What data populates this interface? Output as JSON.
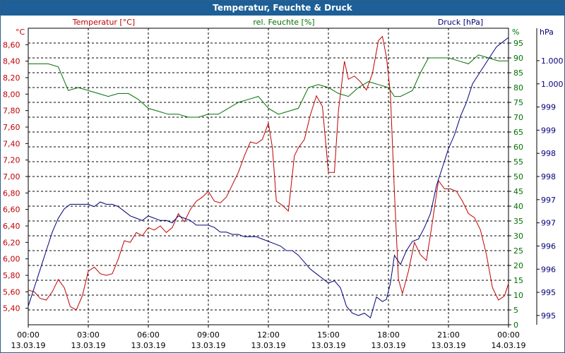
{
  "window": {
    "title": "Temperatur, Feuchte & Druck"
  },
  "chart_data": {
    "type": "line",
    "title": "Temperatur, Feuchte & Druck",
    "x_ticks": [
      {
        "time": "00:00",
        "date": "13.03.19"
      },
      {
        "time": "03:00",
        "date": "13.03.19"
      },
      {
        "time": "06:00",
        "date": "13.03.19"
      },
      {
        "time": "09:00",
        "date": "13.03.19"
      },
      {
        "time": "12:00",
        "date": "13.03.19"
      },
      {
        "time": "15:00",
        "date": "13.03.19"
      },
      {
        "time": "18:00",
        "date": "13.03.19"
      },
      {
        "time": "21:00",
        "date": "13.03.19"
      },
      {
        "time": "00:00",
        "date": "14.03.19"
      }
    ],
    "x_unit": "hours since 13.03.19 00:00",
    "xlim": [
      0,
      24
    ],
    "axes": {
      "temperature": {
        "label": "Temperatur [°C]",
        "unit": "°C",
        "color": "#c00000",
        "ylim": [
          5.2,
          8.8
        ],
        "ticks": [
          "5,40",
          "5,60",
          "5,80",
          "6,00",
          "6,20",
          "6,40",
          "6,60",
          "6,80",
          "7,00",
          "7,20",
          "7,40",
          "7,60",
          "7,80",
          "8,00",
          "8,20",
          "8,40",
          "8,60"
        ]
      },
      "humidity": {
        "label": "rel. Feuchte [%]",
        "unit": "%",
        "color": "#007000",
        "ylim": [
          0,
          100
        ],
        "ticks": [
          "0",
          "5",
          "10",
          "15",
          "20",
          "25",
          "30",
          "35",
          "40",
          "45",
          "50",
          "55",
          "60",
          "65",
          "70",
          "75",
          "80",
          "85",
          "90",
          "95"
        ]
      },
      "pressure": {
        "label": "Druck [hPa]",
        "unit": "hPa",
        "color": "#00007a",
        "ylim": [
          994.8,
          1001.2
        ],
        "tick_labels": [
          "995",
          "995",
          "996",
          "996",
          "997",
          "997",
          "998",
          "998",
          "999",
          "999",
          "1.000",
          "1.000"
        ]
      }
    },
    "series": [
      {
        "name": "Temperatur",
        "axis": "temperature",
        "color": "#c00000",
        "x": [
          0,
          0.3,
          0.6,
          0.9,
          1.2,
          1.5,
          1.8,
          2.1,
          2.4,
          2.7,
          3.0,
          3.3,
          3.6,
          3.9,
          4.2,
          4.5,
          4.8,
          5.1,
          5.4,
          5.7,
          6.0,
          6.3,
          6.6,
          6.9,
          7.2,
          7.5,
          7.8,
          8.1,
          8.4,
          8.7,
          9.0,
          9.3,
          9.6,
          9.9,
          10.2,
          10.5,
          10.8,
          11.1,
          11.4,
          11.7,
          12.0,
          12.2,
          12.4,
          12.7,
          13.0,
          13.3,
          13.5,
          13.8,
          14.1,
          14.4,
          14.7,
          15.0,
          15.3,
          15.5,
          15.8,
          16.0,
          16.3,
          16.6,
          16.9,
          17.2,
          17.5,
          17.7,
          17.9,
          18.1,
          18.3,
          18.5,
          18.7,
          19.0,
          19.3,
          19.6,
          19.9,
          20.2,
          20.5,
          20.8,
          21.1,
          21.4,
          21.7,
          22.0,
          22.3,
          22.6,
          22.9,
          23.2,
          23.5,
          23.8,
          24.0
        ],
        "y": [
          5.62,
          5.6,
          5.52,
          5.5,
          5.6,
          5.75,
          5.65,
          5.42,
          5.38,
          5.55,
          5.85,
          5.9,
          5.82,
          5.8,
          5.82,
          6.0,
          6.22,
          6.2,
          6.32,
          6.28,
          6.38,
          6.35,
          6.4,
          6.32,
          6.38,
          6.55,
          6.45,
          6.6,
          6.7,
          6.75,
          6.82,
          6.7,
          6.68,
          6.75,
          6.9,
          7.05,
          7.25,
          7.42,
          7.4,
          7.45,
          7.65,
          7.35,
          6.7,
          6.65,
          6.58,
          7.25,
          7.35,
          7.45,
          7.75,
          7.98,
          7.85,
          7.05,
          7.05,
          7.8,
          8.4,
          8.18,
          8.22,
          8.15,
          8.05,
          8.25,
          8.65,
          8.7,
          8.45,
          8.0,
          6.8,
          5.75,
          5.58,
          5.85,
          6.2,
          6.05,
          5.98,
          6.45,
          6.95,
          6.85,
          6.85,
          6.82,
          6.7,
          6.55,
          6.5,
          6.35,
          6.05,
          5.65,
          5.5,
          5.55,
          5.7
        ]
      },
      {
        "name": "rel. Feuchte",
        "axis": "humidity",
        "color": "#007000",
        "x": [
          0,
          0.5,
          1.0,
          1.5,
          2.0,
          2.5,
          3.0,
          3.5,
          4.0,
          4.5,
          5.0,
          5.5,
          6.0,
          6.5,
          7.0,
          7.5,
          8.0,
          8.5,
          9.0,
          9.5,
          10.0,
          10.5,
          11.0,
          11.5,
          12.0,
          12.5,
          13.0,
          13.5,
          14.0,
          14.5,
          15.0,
          15.5,
          16.0,
          16.5,
          17.0,
          17.5,
          18.0,
          18.3,
          18.6,
          18.9,
          19.2,
          19.6,
          20.0,
          20.5,
          21.0,
          21.5,
          22.0,
          22.5,
          23.0,
          23.5,
          24.0
        ],
        "y": [
          88,
          88,
          88,
          87,
          79,
          80,
          79,
          78,
          77,
          78,
          78,
          76,
          73,
          72,
          71,
          71,
          70,
          70,
          71,
          71,
          73,
          75,
          76,
          77,
          73,
          71,
          72,
          73,
          80,
          81,
          80,
          78,
          77,
          80,
          82,
          81,
          80,
          77,
          77,
          78,
          79,
          85,
          90,
          90,
          90,
          89,
          88,
          91,
          90,
          89,
          89
        ]
      },
      {
        "name": "Druck",
        "axis": "pressure",
        "color": "#00007a",
        "x": [
          0,
          0.3,
          0.6,
          0.9,
          1.2,
          1.5,
          1.8,
          2.1,
          2.4,
          2.7,
          3.0,
          3.3,
          3.6,
          3.9,
          4.2,
          4.5,
          4.8,
          5.1,
          5.4,
          5.7,
          6.0,
          6.3,
          6.6,
          6.9,
          7.2,
          7.5,
          7.8,
          8.1,
          8.4,
          8.7,
          9.0,
          9.3,
          9.6,
          9.9,
          10.2,
          10.5,
          10.8,
          11.1,
          11.4,
          11.7,
          12.0,
          12.3,
          12.6,
          12.9,
          13.2,
          13.5,
          13.8,
          14.1,
          14.4,
          14.7,
          15.0,
          15.3,
          15.6,
          15.9,
          16.2,
          16.5,
          16.8,
          17.1,
          17.4,
          17.7,
          17.9,
          18.1,
          18.3,
          18.6,
          18.9,
          19.2,
          19.5,
          19.8,
          20.1,
          20.4,
          20.7,
          21.0,
          21.3,
          21.6,
          21.9,
          22.2,
          22.5,
          22.8,
          23.1,
          23.4,
          23.7,
          24.0
        ],
        "y": [
          995.2,
          995.6,
          996.0,
          996.4,
          996.8,
          997.1,
          997.3,
          997.4,
          997.4,
          997.4,
          997.4,
          997.35,
          997.45,
          997.4,
          997.4,
          997.35,
          997.25,
          997.15,
          997.1,
          997.05,
          997.15,
          997.1,
          997.05,
          997.05,
          997.0,
          997.15,
          997.1,
          997.05,
          996.95,
          996.95,
          996.95,
          996.9,
          996.8,
          996.8,
          996.75,
          996.75,
          996.7,
          996.7,
          996.7,
          996.65,
          996.6,
          996.55,
          996.5,
          996.4,
          996.4,
          996.3,
          996.15,
          996.0,
          995.9,
          995.8,
          995.7,
          995.75,
          995.6,
          995.2,
          995.05,
          995.0,
          995.05,
          994.95,
          995.4,
          995.3,
          995.35,
          995.7,
          996.3,
          996.1,
          996.4,
          996.6,
          996.65,
          996.9,
          997.2,
          997.8,
          998.2,
          998.6,
          998.9,
          999.3,
          999.6,
          1000.0,
          1000.2,
          1000.4,
          1000.6,
          1000.8,
          1000.9,
          1001.0
        ]
      }
    ]
  }
}
